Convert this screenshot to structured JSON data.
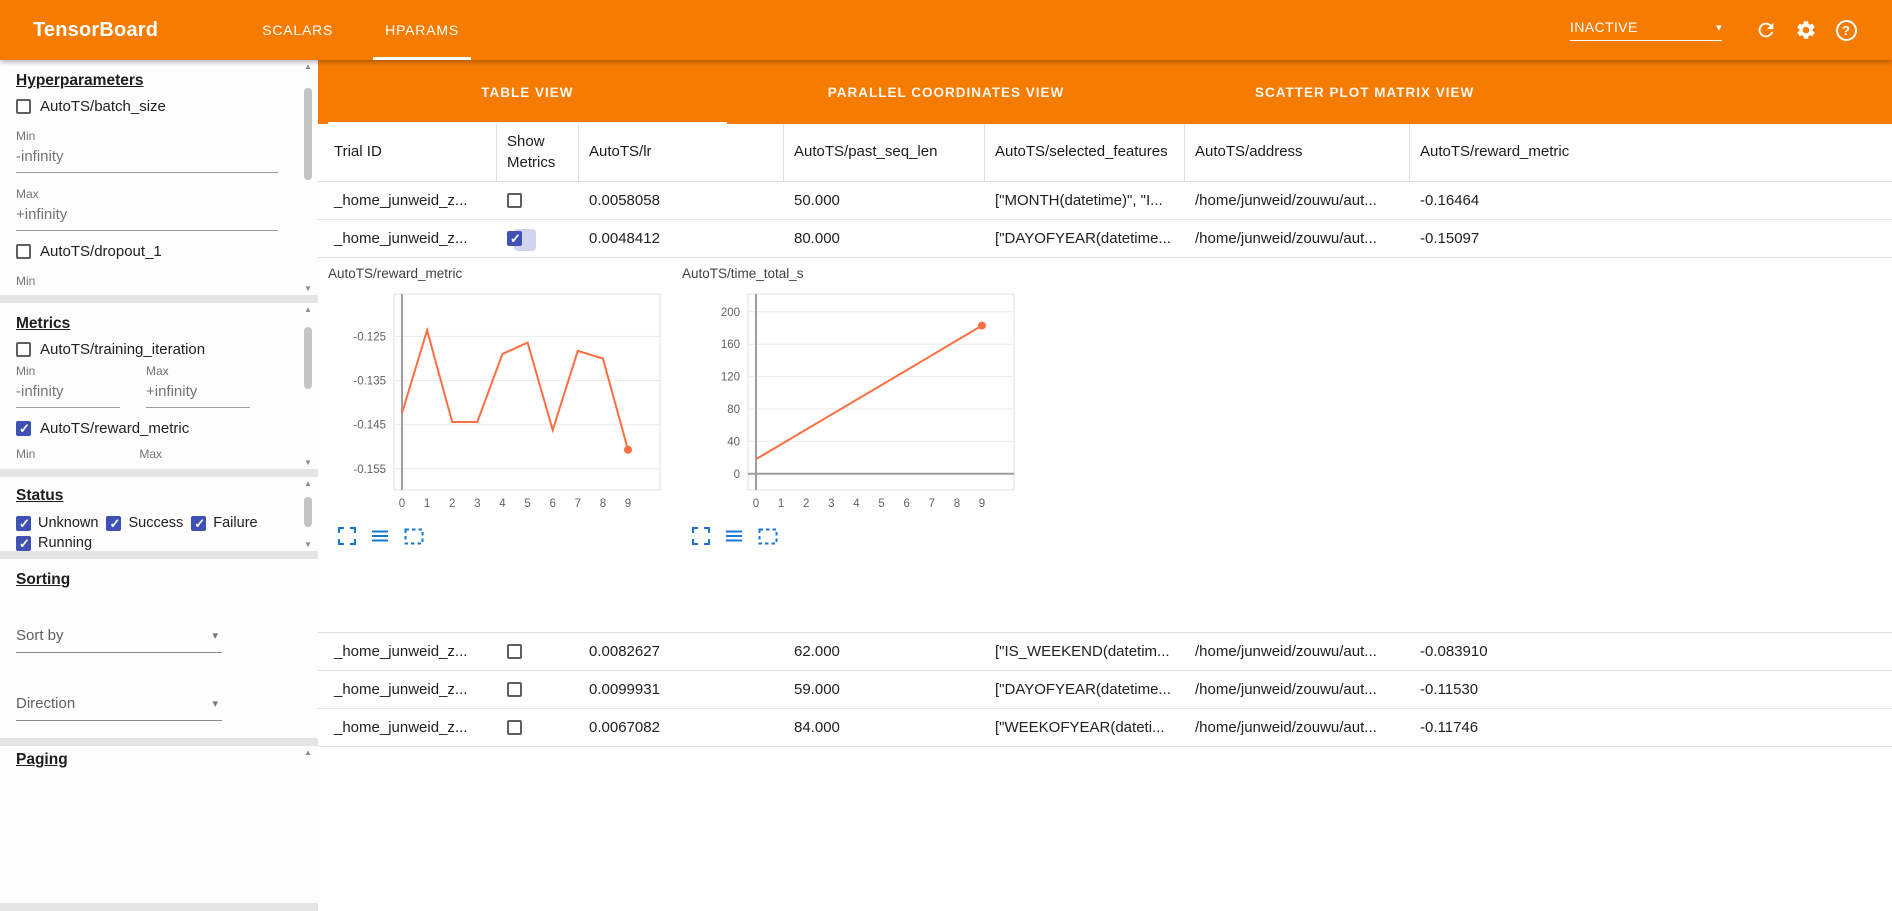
{
  "topbar": {
    "title": "TensorBoard",
    "tabs": [
      {
        "label": "SCALARS",
        "active": false
      },
      {
        "label": "HPARAMS",
        "active": true
      }
    ],
    "run_status": "INACTIVE"
  },
  "sidebar": {
    "hyperparameters": {
      "heading": "Hyperparameters",
      "items": [
        {
          "label": "AutoTS/batch_size",
          "checked": false
        },
        {
          "label": "AutoTS/dropout_1",
          "checked": false
        }
      ],
      "min_label": "Min",
      "min_value": "-infinity",
      "max_label": "Max",
      "max_value": "+infinity",
      "trailing_min_label": "Min"
    },
    "metrics": {
      "heading": "Metrics",
      "items": [
        {
          "label": "AutoTS/training_iteration",
          "checked": false
        },
        {
          "label": "AutoTS/reward_metric",
          "checked": true
        }
      ],
      "min_label": "Min",
      "min_value": "-infinity",
      "max_label": "Max",
      "max_value": "+infinity",
      "trailing_min_label": "Min",
      "trailing_max_label": "Max"
    },
    "status": {
      "heading": "Status",
      "items": [
        {
          "label": "Unknown",
          "checked": true
        },
        {
          "label": "Success",
          "checked": true
        },
        {
          "label": "Failure",
          "checked": true
        },
        {
          "label": "Running",
          "checked": true
        }
      ]
    },
    "sorting": {
      "heading": "Sorting",
      "sort_by_label": "Sort by",
      "direction_label": "Direction"
    },
    "paging": {
      "heading": "Paging"
    }
  },
  "view_tabs": [
    {
      "label": "TABLE VIEW",
      "active": true
    },
    {
      "label": "PARALLEL COORDINATES VIEW",
      "active": false
    },
    {
      "label": "SCATTER PLOT MATRIX VIEW",
      "active": false
    }
  ],
  "table": {
    "columns": [
      "Trial ID",
      "Show Metrics",
      "AutoTS/lr",
      "AutoTS/past_seq_len",
      "AutoTS/selected_features",
      "AutoTS/address",
      "AutoTS/reward_metric"
    ],
    "charts_after_row": 1,
    "rows": [
      {
        "trial_id": "_home_junweid_z...",
        "show_metrics": false,
        "lr": "0.0058058",
        "past_seq_len": "50.000",
        "selected_features": "[\"MONTH(datetime)\", \"I...",
        "address": "/home/junweid/zouwu/aut...",
        "reward_metric": "-0.16464"
      },
      {
        "trial_id": "_home_junweid_z...",
        "show_metrics": true,
        "lr": "0.0048412",
        "past_seq_len": "80.000",
        "selected_features": "[\"DAYOFYEAR(datetime...",
        "address": "/home/junweid/zouwu/aut...",
        "reward_metric": "-0.15097"
      },
      {
        "trial_id": "_home_junweid_z...",
        "show_metrics": false,
        "lr": "0.0082627",
        "past_seq_len": "62.000",
        "selected_features": "[\"IS_WEEKEND(datetim...",
        "address": "/home/junweid/zouwu/aut...",
        "reward_metric": "-0.083910"
      },
      {
        "trial_id": "_home_junweid_z...",
        "show_metrics": false,
        "lr": "0.0099931",
        "past_seq_len": "59.000",
        "selected_features": "[\"DAYOFYEAR(datetime...",
        "address": "/home/junweid/zouwu/aut...",
        "reward_metric": "-0.11530"
      },
      {
        "trial_id": "_home_junweid_z...",
        "show_metrics": false,
        "lr": "0.0067082",
        "past_seq_len": "84.000",
        "selected_features": "[\"WEEKOFYEAR(dateti...",
        "address": "/home/junweid/zouwu/aut...",
        "reward_metric": "-0.11746"
      }
    ]
  },
  "chart_data": [
    {
      "type": "line",
      "title": "AutoTS/reward_metric",
      "x": [
        0,
        1,
        2,
        3,
        4,
        5,
        6,
        7,
        8,
        9
      ],
      "values": [
        -0.1424,
        -0.1236,
        -0.1444,
        -0.1444,
        -0.129,
        -0.1264,
        -0.1462,
        -0.1283,
        -0.13,
        -0.1507
      ],
      "ylim": [
        -0.1598,
        -0.1154
      ],
      "yticks": [
        -0.125,
        -0.135,
        -0.145,
        -0.155
      ],
      "ytick_labels": [
        "-0.125",
        "-0.135",
        "-0.145",
        "-0.155"
      ],
      "xtick_labels": [
        "0",
        "1",
        "2",
        "3",
        "4",
        "5",
        "6",
        "7",
        "8",
        "9"
      ],
      "xlabel": "",
      "ylabel": "",
      "grid": true,
      "legend": "none",
      "line_color": "#ff6e40"
    },
    {
      "type": "line",
      "title": "AutoTS/time_total_s",
      "x": [
        0,
        1,
        2,
        3,
        4,
        5,
        6,
        7,
        8,
        9
      ],
      "values": [
        18,
        36.3,
        54.7,
        73,
        91.3,
        109.7,
        128,
        146.3,
        164.7,
        183
      ],
      "ylim": [
        -20,
        222
      ],
      "yticks": [
        0,
        40,
        80,
        120,
        160,
        200
      ],
      "ytick_labels": [
        "0",
        "40",
        "80",
        "120",
        "160",
        "200"
      ],
      "xtick_labels": [
        "0",
        "1",
        "2",
        "3",
        "4",
        "5",
        "6",
        "7",
        "8",
        "9"
      ],
      "xlabel": "",
      "ylabel": "",
      "grid": true,
      "legend": "none",
      "line_color": "#ff6e40"
    }
  ]
}
